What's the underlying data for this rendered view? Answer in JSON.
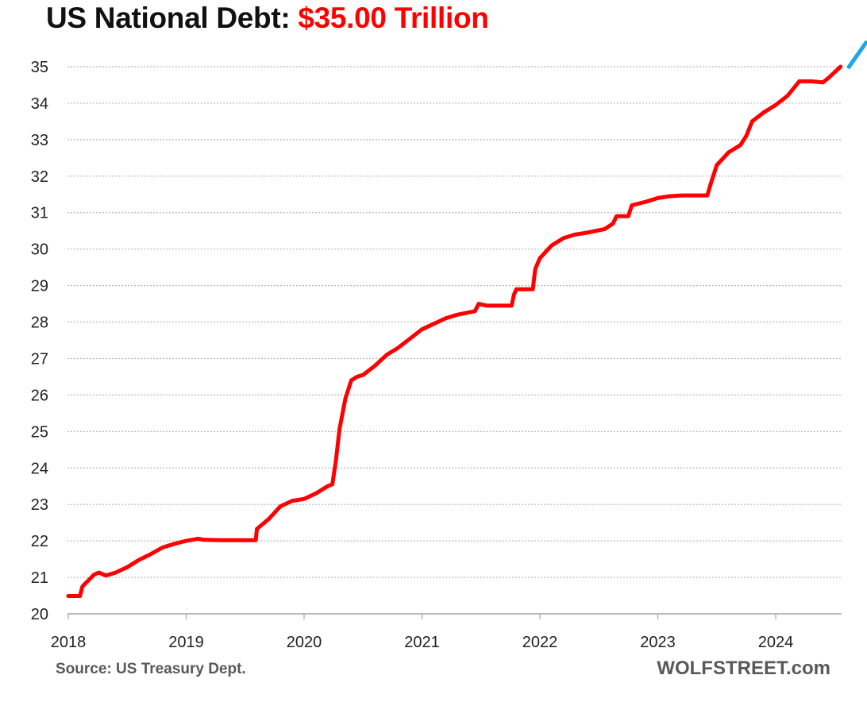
{
  "chart_data": {
    "type": "line",
    "title_prefix": "US National Debt: ",
    "title_value": "$35.00 Trillion",
    "ylim": [
      20,
      35
    ],
    "xlim": [
      2018,
      2024.55
    ],
    "y_ticks": [
      "20",
      "21",
      "22",
      "23",
      "24",
      "25",
      "26",
      "27",
      "28",
      "29",
      "30",
      "31",
      "32",
      "33",
      "34",
      "35"
    ],
    "x_ticks": [
      "2018",
      "2019",
      "2020",
      "2021",
      "2022",
      "2023",
      "2024"
    ],
    "grid": "horizontal dotted",
    "series": [
      {
        "name": "US National Debt (trillions $)",
        "color": "#ff0000",
        "x": [
          2018.0,
          2018.1,
          2018.12,
          2018.22,
          2018.26,
          2018.32,
          2018.4,
          2018.5,
          2018.6,
          2018.7,
          2018.8,
          2018.9,
          2019.0,
          2019.1,
          2019.15,
          2019.3,
          2019.59,
          2019.6,
          2019.7,
          2019.8,
          2019.9,
          2020.0,
          2020.1,
          2020.2,
          2020.24,
          2020.27,
          2020.3,
          2020.35,
          2020.4,
          2020.45,
          2020.5,
          2020.6,
          2020.7,
          2020.8,
          2020.9,
          2021.0,
          2021.1,
          2021.2,
          2021.3,
          2021.45,
          2021.48,
          2021.55,
          2021.76,
          2021.78,
          2021.8,
          2021.94,
          2021.96,
          2022.0,
          2022.1,
          2022.2,
          2022.3,
          2022.4,
          2022.55,
          2022.62,
          2022.65,
          2022.75,
          2022.78,
          2022.9,
          2023.0,
          2023.1,
          2023.2,
          2023.42,
          2023.45,
          2023.5,
          2023.6,
          2023.7,
          2023.75,
          2023.8,
          2023.9,
          2024.0,
          2024.1,
          2024.2,
          2024.3,
          2024.4,
          2024.45,
          2024.55
        ],
        "values": [
          20.49,
          20.49,
          20.75,
          21.08,
          21.13,
          21.05,
          21.13,
          21.28,
          21.48,
          21.64,
          21.82,
          21.92,
          22.0,
          22.06,
          22.03,
          22.02,
          22.02,
          22.33,
          22.6,
          22.95,
          23.1,
          23.15,
          23.3,
          23.5,
          23.55,
          24.2,
          25.05,
          25.9,
          26.4,
          26.5,
          26.55,
          26.8,
          27.1,
          27.3,
          27.55,
          27.8,
          27.95,
          28.1,
          28.2,
          28.3,
          28.5,
          28.45,
          28.45,
          28.75,
          28.9,
          28.9,
          29.45,
          29.75,
          30.1,
          30.3,
          30.4,
          30.45,
          30.55,
          30.7,
          30.9,
          30.9,
          31.2,
          31.3,
          31.4,
          31.45,
          31.47,
          31.47,
          31.8,
          32.3,
          32.65,
          32.85,
          33.1,
          33.5,
          33.75,
          33.95,
          34.2,
          34.6,
          34.6,
          34.57,
          34.7,
          35.0
        ]
      }
    ],
    "arrow_color": "#1ea7e1"
  },
  "source_note": "Source: US Treasury Dept.",
  "branding": "WOLFSTREET.com"
}
